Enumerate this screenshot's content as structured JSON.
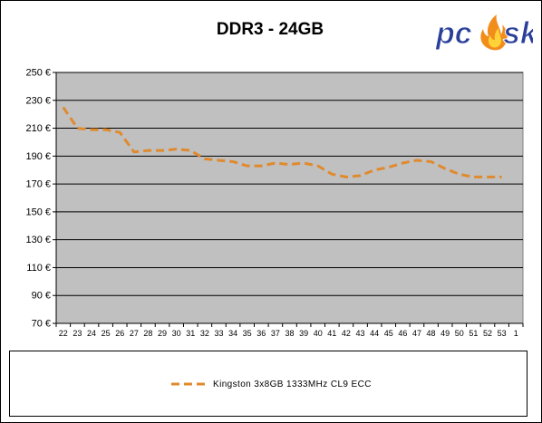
{
  "logo": {
    "text": "pcosk",
    "icon": "flame-icon",
    "colors": {
      "text": "#2a3f9a",
      "flame": "#f28c1b"
    }
  },
  "chart_data": {
    "type": "line",
    "title": "DDR3 - 24GB",
    "xlabel": "",
    "ylabel": "",
    "categories": [
      "22",
      "23",
      "24",
      "25",
      "26",
      "27",
      "28",
      "29",
      "30",
      "31",
      "32",
      "33",
      "34",
      "35",
      "36",
      "37",
      "38",
      "39",
      "40",
      "41",
      "42",
      "43",
      "44",
      "45",
      "46",
      "47",
      "48",
      "49",
      "50",
      "51",
      "52",
      "53",
      "1"
    ],
    "series": [
      {
        "name": "Kingston 3x8GB 1333MHz CL9 ECC",
        "color": "#e08a2e",
        "values": [
          225,
          210,
          209,
          209,
          207,
          193,
          194,
          194,
          195,
          194,
          188,
          187,
          186,
          183,
          183,
          185,
          184,
          185,
          183,
          177,
          175,
          176,
          180,
          182,
          185,
          187,
          186,
          181,
          177,
          175,
          175,
          175,
          null
        ]
      }
    ],
    "ylim": [
      70,
      250
    ],
    "yticks": [
      70,
      90,
      110,
      130,
      150,
      170,
      190,
      210,
      230,
      250
    ],
    "y_unit_suffix": " €",
    "grid": true,
    "legend_position": "bottom",
    "colors": {
      "plot_background": "#c0c0c0",
      "gridline": "#000000",
      "series": "#e08a2e"
    }
  }
}
